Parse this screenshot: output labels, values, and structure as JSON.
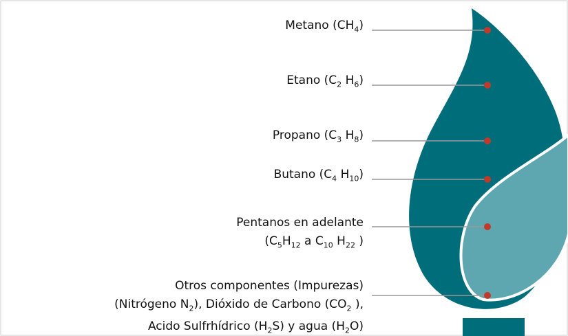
{
  "components": [
    {
      "lines": [
        [
          {
            "text": "Metano (CH"
          },
          {
            "sub": "4"
          },
          {
            "text": ")"
          }
        ]
      ]
    },
    {
      "lines": [
        [
          {
            "text": "Etano (C"
          },
          {
            "sub": "2"
          },
          {
            "text": " H"
          },
          {
            "sub": "6"
          },
          {
            "text": ")"
          }
        ]
      ]
    },
    {
      "lines": [
        [
          {
            "text": "Propano (C"
          },
          {
            "sub": "3"
          },
          {
            "text": " H"
          },
          {
            "sub": "8"
          },
          {
            "text": ")"
          }
        ]
      ]
    },
    {
      "lines": [
        [
          {
            "text": "Butano (C"
          },
          {
            "sub": "4"
          },
          {
            "text": " H"
          },
          {
            "sub": "10"
          },
          {
            "text": ")"
          }
        ]
      ]
    },
    {
      "lines": [
        [
          {
            "text": "Pentanos en adelante"
          }
        ],
        [
          {
            "text": "(C"
          },
          {
            "sub": "5"
          },
          {
            "text": "H"
          },
          {
            "sub": "12"
          },
          {
            "text": " a C"
          },
          {
            "sub": "10"
          },
          {
            "text": " H"
          },
          {
            "sub": "22"
          },
          {
            "text": " )"
          }
        ]
      ]
    },
    {
      "lines": [
        [
          {
            "text": "Otros componentes (Impurezas)"
          }
        ],
        [
          {
            "text": "(Nitrógeno N"
          },
          {
            "sub": "2"
          },
          {
            "text": "), Dióxido de Carbono (CO"
          },
          {
            "sub": "2"
          },
          {
            "text": " ),"
          }
        ],
        [
          {
            "text": "Acido Sulfrhídrico (H"
          },
          {
            "sub": "2"
          },
          {
            "text": "S) y agua (H"
          },
          {
            "sub": "2"
          },
          {
            "text": "O)"
          }
        ]
      ]
    }
  ]
}
